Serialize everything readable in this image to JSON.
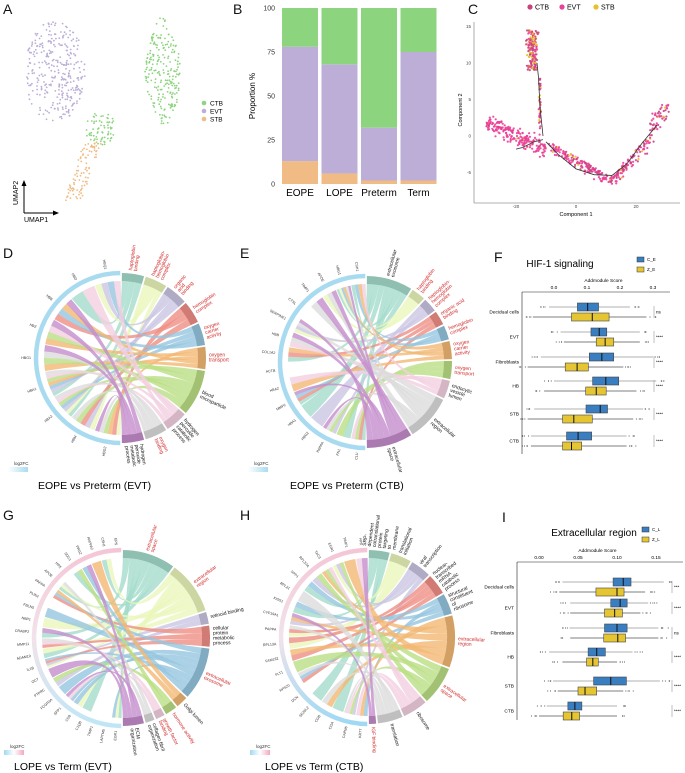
{
  "panel_letters": {
    "a": "A",
    "b": "B",
    "c": "C",
    "d": "D",
    "e": "E",
    "f": "F",
    "g": "G",
    "h": "H",
    "i": "I"
  },
  "colors": {
    "CTB": "#8dd47f",
    "EVT": "#bcaed6",
    "STB": "#f0bb84",
    "traj_CTB": "#c9437e",
    "traj_EVT": "#ec3f97",
    "traj_STB": "#e8c12a",
    "box_C": "#3a7ec2",
    "box_Z": "#e5c531",
    "red_term": "#d22b2b"
  },
  "chart_data": [
    {
      "id": "A",
      "type": "scatter",
      "xlabel": "UMAP1",
      "ylabel": "UMAP2",
      "legend": [
        "CTB",
        "EVT",
        "STB"
      ],
      "legend_placement": "right"
    },
    {
      "id": "B",
      "type": "bar",
      "stacked": true,
      "categories": [
        "EOPE",
        "LOPE",
        "Preterm",
        "Term"
      ],
      "series": [
        {
          "name": "STB",
          "values": [
            13,
            6,
            2,
            2
          ]
        },
        {
          "name": "EVT",
          "values": [
            65,
            62,
            30,
            73
          ]
        },
        {
          "name": "CTB",
          "values": [
            22,
            32,
            68,
            25
          ]
        }
      ],
      "ylabel": "Proportion %",
      "ylim": [
        0,
        100
      ],
      "yticks": [
        0,
        25,
        50,
        75,
        100
      ],
      "grid": false
    },
    {
      "id": "C",
      "type": "scatter",
      "legend": [
        "CTB",
        "EVT",
        "STB"
      ],
      "legend_placement": "top",
      "xlabel": "Component 1",
      "ylabel": "Component 2",
      "xticks": [
        -20,
        0,
        20
      ],
      "yticks": [
        -5,
        0,
        5,
        10,
        15
      ],
      "xlim": [
        -32,
        34
      ],
      "ylim": [
        -9,
        16.5
      ],
      "trajectory": [
        [
          [
            -11,
            0
          ],
          [
            -12,
            4
          ],
          [
            -12.5,
            8
          ],
          [
            -13,
            10
          ]
        ],
        [
          [
            -11,
            -0.5
          ],
          [
            -14,
            -0.8
          ],
          [
            -18,
            -1.6
          ],
          [
            -20,
            -1.8
          ]
        ],
        [
          [
            -10,
            -0.8
          ],
          [
            -6,
            -2.5
          ],
          [
            0,
            -4.5
          ],
          [
            6,
            -5.3
          ],
          [
            12,
            -5.4
          ],
          [
            17,
            -3.8
          ],
          [
            22,
            -1
          ],
          [
            27,
            1.5
          ]
        ]
      ]
    },
    {
      "id": "D",
      "type": "chord",
      "title": "EOPE vs Preterm (EVT)",
      "legend": "log2FC",
      "genes": [
        "HBG2",
        "HBM",
        "HBA2",
        "HBA1",
        "HBG1",
        "HBZ",
        "HBB",
        "HBD",
        "HBQ1"
      ],
      "terms": [
        {
          "label": "haptoglobin binding",
          "highlight": true,
          "weight": 3
        },
        {
          "label": "haptoglobin-hemoglobin complex",
          "highlight": true,
          "weight": 3
        },
        {
          "label": "organic acid binding",
          "highlight": true,
          "weight": 3
        },
        {
          "label": "hemoglobin complex",
          "highlight": true,
          "weight": 3
        },
        {
          "label": "oxygen carrier activity",
          "highlight": true,
          "weight": 3
        },
        {
          "label": "oxygen transport",
          "highlight": true,
          "weight": 3
        },
        {
          "label": "blood microparticle",
          "highlight": false,
          "weight": 6
        },
        {
          "label": "hydrogen peroxide catabolic process",
          "highlight": false,
          "weight": 3
        },
        {
          "label": "oxygen binding",
          "highlight": true,
          "weight": 3
        },
        {
          "label": "hydrogen peroxide metabolic process",
          "highlight": false,
          "weight": 3
        }
      ]
    },
    {
      "id": "E",
      "type": "chord",
      "title": "EOPE vs Preterm (CTB)",
      "legend": "log2FC",
      "genes": [
        "CLU",
        "FN1",
        "PAPPA",
        "HBG2",
        "HBA1",
        "MMP2",
        "HBA2",
        "ACTB",
        "COL1A2",
        "HBB",
        "SERPINE1",
        "CTSL",
        "TIMP1",
        "APOE",
        "HBG1",
        "CSH1"
      ],
      "terms": [
        {
          "label": "extracellular exosome",
          "highlight": false,
          "weight": 6
        },
        {
          "label": "haptoglobin binding",
          "highlight": true,
          "weight": 2
        },
        {
          "label": "haptoglobin-hemoglobin complex",
          "highlight": true,
          "weight": 2
        },
        {
          "label": "organic acid binding",
          "highlight": true,
          "weight": 2
        },
        {
          "label": "hemoglobin complex",
          "highlight": true,
          "weight": 2
        },
        {
          "label": "oxygen carrier activity",
          "highlight": true,
          "weight": 2.5
        },
        {
          "label": "oxygen transport",
          "highlight": true,
          "weight": 2.5
        },
        {
          "label": "endocytic vesicle lumen",
          "highlight": false,
          "weight": 2.5
        },
        {
          "label": "extracellular region",
          "highlight": false,
          "weight": 6
        },
        {
          "label": "extracellular space",
          "highlight": false,
          "weight": 6
        }
      ]
    },
    {
      "id": "F",
      "type": "box",
      "title": "HIF-1 signaling",
      "xlabel": "Addmodule Score",
      "xticks": [
        0.0,
        0.1,
        0.2,
        0.3
      ],
      "xlim": [
        -0.1,
        0.35
      ],
      "groups": [
        "C_E",
        "Z_E"
      ],
      "categories": [
        "Decidual cells",
        "EVT",
        "Fibroblasts",
        "HB",
        "STB",
        "CTB"
      ],
      "significance": [
        "ns",
        "****",
        "****",
        "****",
        "****",
        "****"
      ],
      "series": [
        {
          "name": "C_E",
          "stats": [
            [
              -0.015,
              0.071,
              0.102,
              0.135,
              0.23
            ],
            [
              0.02,
              0.112,
              0.137,
              0.16,
              0.26
            ],
            [
              -0.04,
              0.107,
              0.145,
              0.181,
              0.3
            ],
            [
              0.0,
              0.117,
              0.157,
              0.196,
              0.31
            ],
            [
              -0.06,
              0.097,
              0.14,
              0.162,
              0.27
            ],
            [
              -0.07,
              0.038,
              0.073,
              0.114,
              0.22
            ]
          ]
        },
        {
          "name": "Z_E",
          "stats": [
            [
              -0.064,
              0.053,
              0.116,
              0.167,
              0.28
            ],
            [
              0.03,
              0.128,
              0.155,
              0.181,
              0.26
            ],
            [
              -0.08,
              0.034,
              0.07,
              0.104,
              0.21
            ],
            [
              -0.03,
              0.096,
              0.128,
              0.158,
              0.25
            ],
            [
              -0.08,
              0.026,
              0.06,
              0.116,
              0.24
            ],
            [
              -0.07,
              0.026,
              0.053,
              0.084,
              0.22
            ]
          ]
        }
      ]
    },
    {
      "id": "G",
      "type": "chord",
      "title": "LOPE vs Term (EVT)",
      "legend": "log2FC",
      "genes": [
        "EGR1",
        "LAPTM5",
        "TIMP1",
        "C1QB",
        "CD9",
        "SPP1",
        "FCGR3A",
        "PTPRC",
        "OCT",
        "IL1B",
        "ADAM19",
        "MMP11",
        "CRABP2",
        "NBP1",
        "FBLN5",
        "PLIN2",
        "PAPPA",
        "APOE",
        "HPX",
        "SDC1",
        "PRG2",
        "PAPPA2",
        "CSH1",
        "EPS"
      ],
      "terms": [
        {
          "label": "extracellular space",
          "highlight": true,
          "weight": 6
        },
        {
          "label": "extracellular region",
          "highlight": true,
          "weight": 6
        },
        {
          "label": "retinoid binding",
          "highlight": false,
          "weight": 1.5
        },
        {
          "label": "cellular protein metabolic process",
          "highlight": false,
          "weight": 2.5
        },
        {
          "label": "extracellular exosome",
          "highlight": true,
          "weight": 6
        },
        {
          "label": "Golgi lumen",
          "highlight": false,
          "weight": 1.5
        },
        {
          "label": "hormone activity",
          "highlight": true,
          "weight": 1.5
        },
        {
          "label": "growth factor binding",
          "highlight": true,
          "weight": 1.2
        },
        {
          "label": "collagen fibril organization",
          "highlight": false,
          "weight": 1.2
        },
        {
          "label": "ECM organization",
          "highlight": false,
          "weight": 2.5
        }
      ]
    },
    {
      "id": "H",
      "type": "chord",
      "title": "LOPE vs Term (CTB)",
      "legend": "log2FC",
      "genes": [
        "KRT7",
        "CAPN6",
        "CGA",
        "CGB",
        "SEZ6L2",
        "DCN",
        "RPS20",
        "FLT1",
        "FAM162",
        "RPL13A",
        "PAPPA",
        "CYP19A1",
        "KISS1",
        "RPL21",
        "SPP1",
        "RPL37A",
        "TAC3",
        "EGR1",
        "TIMP1",
        "HPX"
      ],
      "terms": [
        {
          "label": "SRP-dependent cotranslational protein targeting to membrane",
          "highlight": false,
          "weight": 2.5
        },
        {
          "label": "translational initiation",
          "highlight": false,
          "weight": 2.5
        },
        {
          "label": "viral transcription",
          "highlight": false,
          "weight": 2.5
        },
        {
          "label": "nuclear-transcribed mRNA catabolic process",
          "highlight": false,
          "weight": 2.5
        },
        {
          "label": "structural constituent of ribosome",
          "highlight": false,
          "weight": 2.5
        },
        {
          "label": "extracellular region",
          "highlight": true,
          "weight": 6
        },
        {
          "label": "extracellular space",
          "highlight": true,
          "weight": 4.5
        },
        {
          "label": "ribosome",
          "highlight": false,
          "weight": 3
        },
        {
          "label": "translation",
          "highlight": false,
          "weight": 3
        },
        {
          "label": "IGF binding",
          "highlight": true,
          "weight": 1
        }
      ]
    },
    {
      "id": "I",
      "type": "box",
      "title": "Extracellular region",
      "xlabel": "Addmodule Score",
      "xticks": [
        0.0,
        0.05,
        0.1,
        0.15
      ],
      "xlim": [
        -0.03,
        0.185
      ],
      "groups": [
        "C_L",
        "Z_L"
      ],
      "categories": [
        "Decidual cells",
        "EVT",
        "Fibroblasts",
        "HB",
        "STB",
        "CTB"
      ],
      "significance": [
        "***",
        "****",
        "ns",
        "****",
        "****",
        "****"
      ],
      "series": [
        {
          "name": "C_L",
          "stats": [
            [
              0.03,
              0.095,
              0.108,
              0.118,
              0.16
            ],
            [
              0.04,
              0.092,
              0.104,
              0.113,
              0.14
            ],
            [
              0.039,
              0.084,
              0.1,
              0.113,
              0.153
            ],
            [
              0.013,
              0.063,
              0.074,
              0.085,
              0.12
            ],
            [
              0.018,
              0.07,
              0.092,
              0.112,
              0.155
            ],
            [
              0.01,
              0.037,
              0.046,
              0.055,
              0.1
            ]
          ]
        },
        {
          "name": "Z_L",
          "stats": [
            [
              0.026,
              0.073,
              0.1,
              0.109,
              0.136
            ],
            [
              0.04,
              0.084,
              0.097,
              0.107,
              0.13
            ],
            [
              0.04,
              0.083,
              0.101,
              0.111,
              0.153
            ],
            [
              0.03,
              0.061,
              0.069,
              0.076,
              0.1
            ],
            [
              0.024,
              0.05,
              0.059,
              0.074,
              0.108
            ],
            [
              0.0,
              0.031,
              0.042,
              0.052,
              0.1
            ]
          ]
        }
      ]
    }
  ]
}
